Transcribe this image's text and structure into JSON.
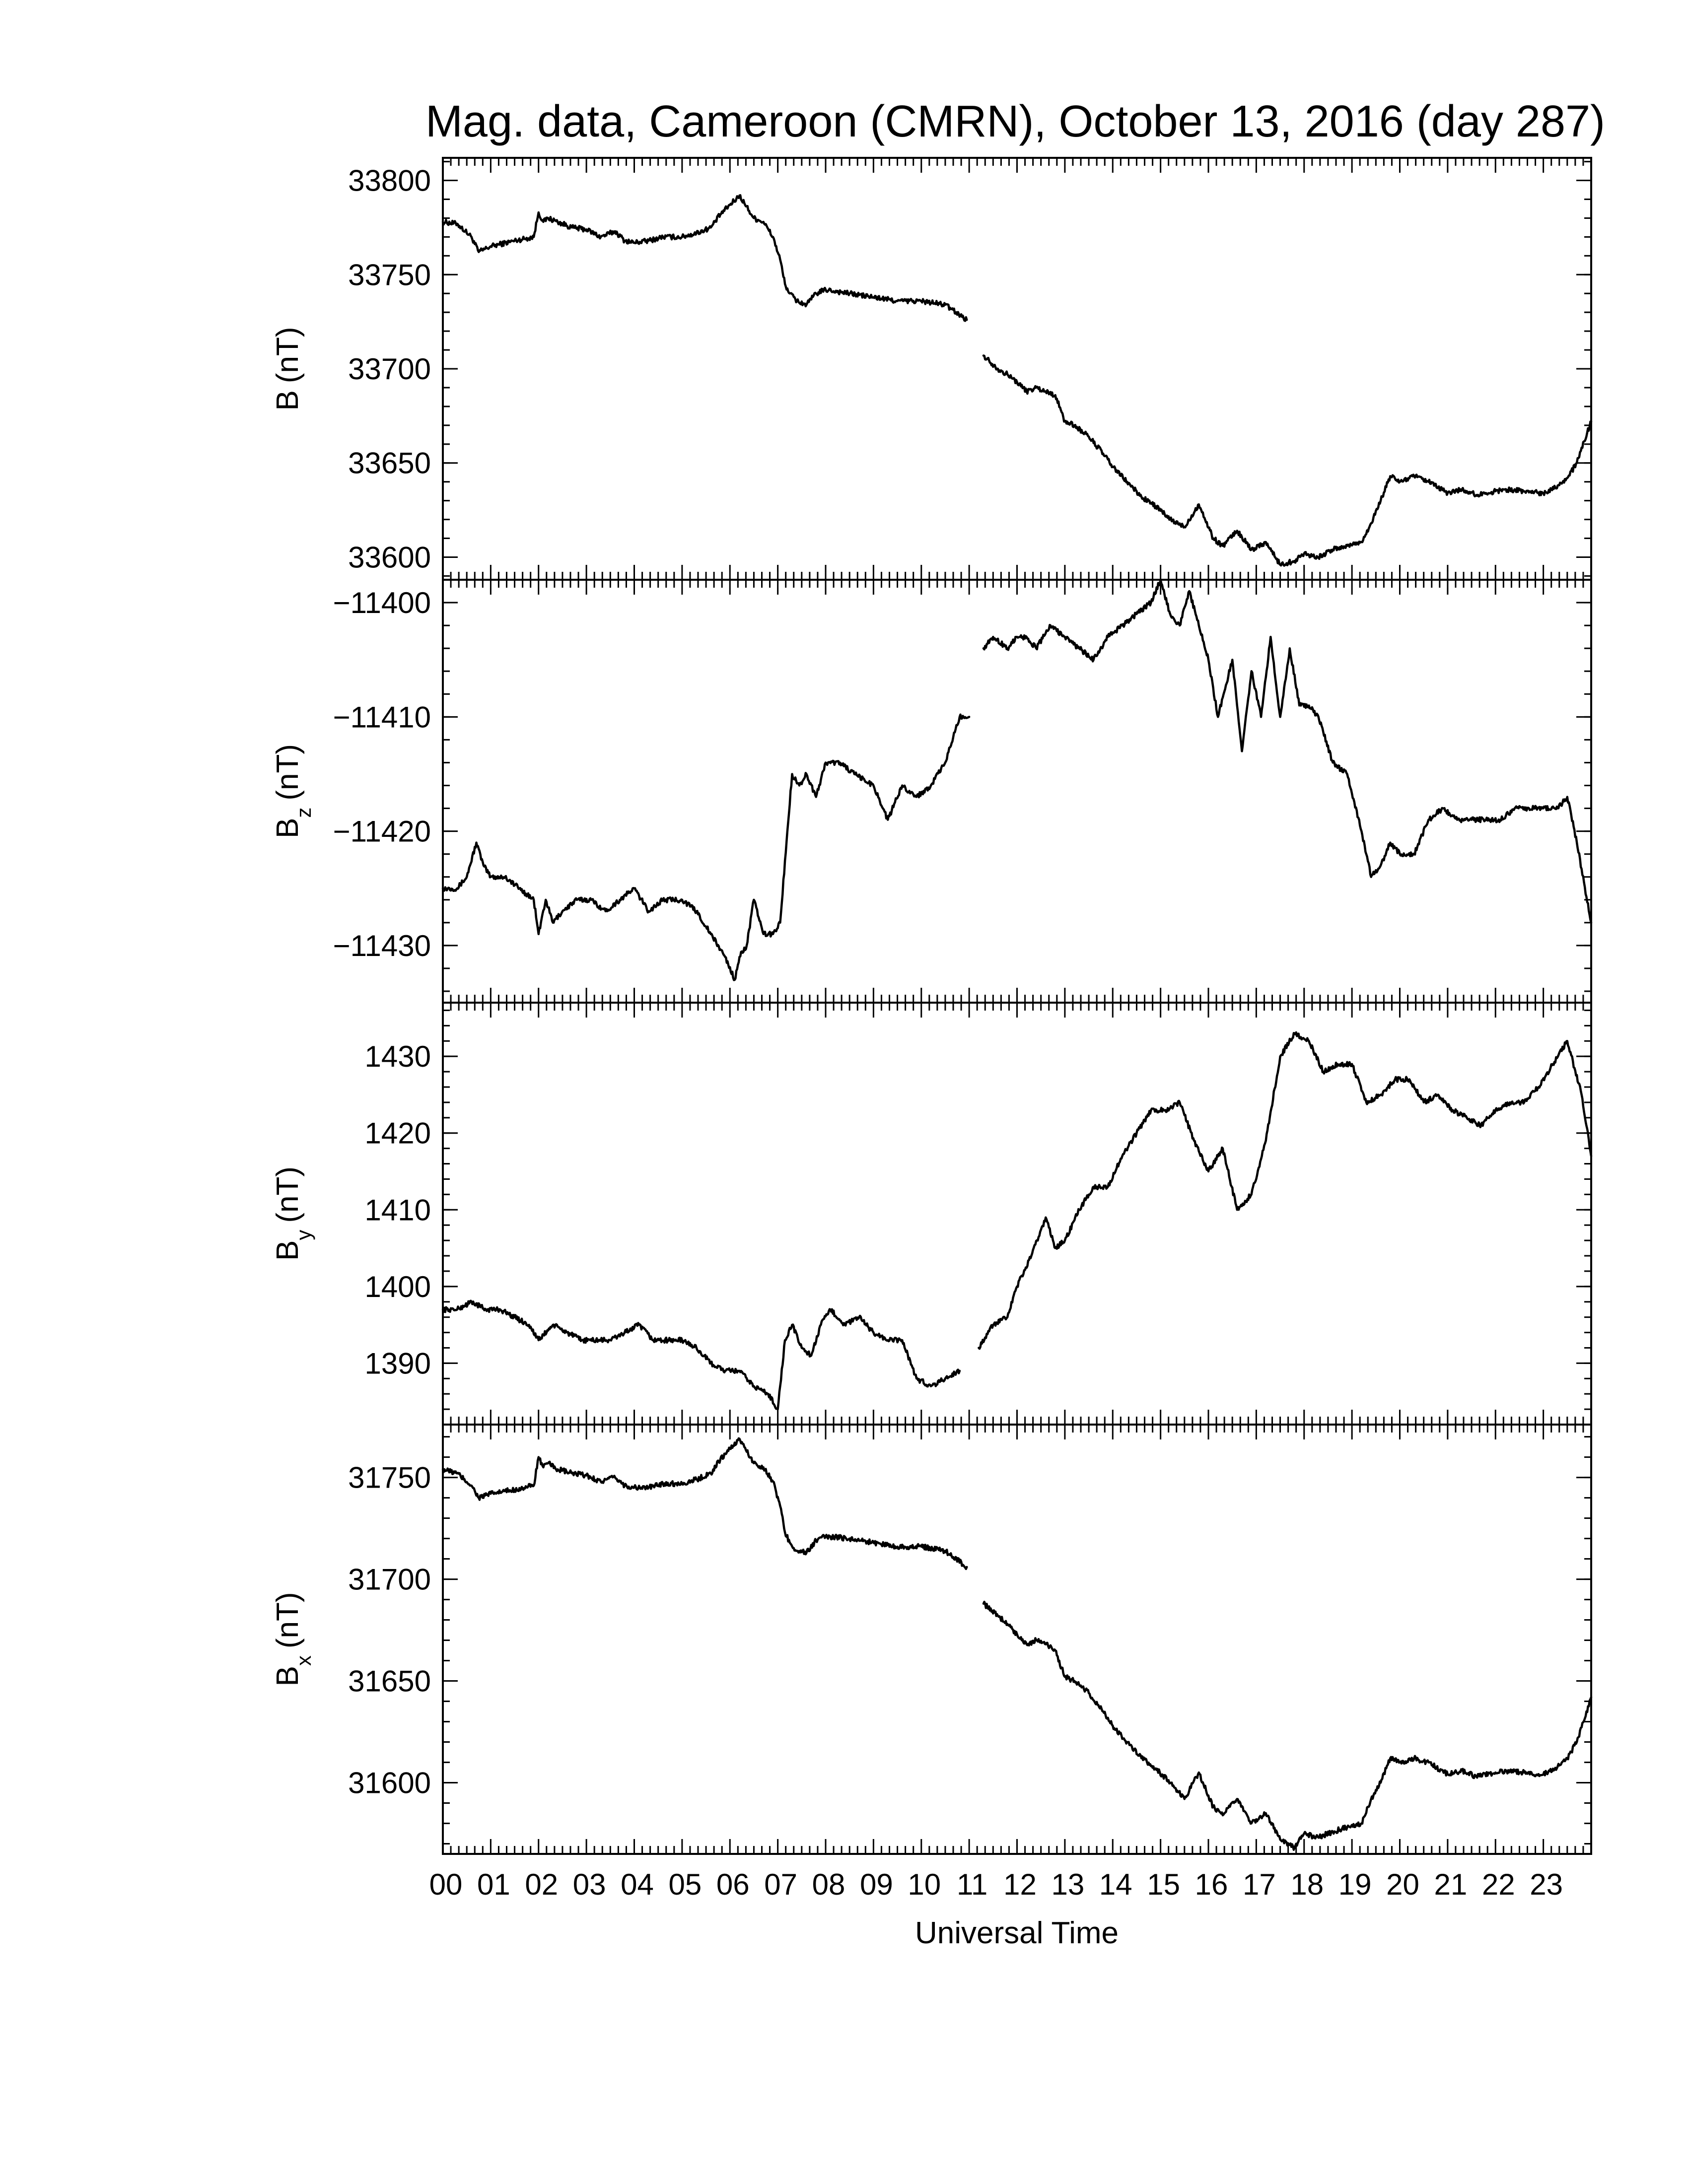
{
  "chart_data": {
    "title": "Mag. data, Cameroon (CMRN), October 13, 2016 (day 287)",
    "type": "line",
    "xlabel": "Universal Time",
    "xlim": [
      0,
      24
    ],
    "x_tick_labels": [
      "00",
      "01",
      "02",
      "03",
      "04",
      "05",
      "06",
      "07",
      "08",
      "09",
      "10",
      "11",
      "12",
      "13",
      "14",
      "15",
      "16",
      "17",
      "18",
      "19",
      "20",
      "21",
      "22",
      "23"
    ],
    "panels": [
      {
        "name": "B",
        "ylabel": "B (nT)",
        "ylabel_main": "B",
        "ylabel_sub": "",
        "ylabel_unit": "(nT)",
        "ylim": [
          33588,
          33812
        ],
        "yticks": [
          33600,
          33650,
          33700,
          33750,
          33800
        ],
        "x": [
          0.0,
          0.3,
          0.6,
          0.75,
          1.0,
          1.5,
          1.9,
          2.0,
          2.1,
          2.2,
          2.4,
          2.7,
          3.0,
          3.3,
          3.6,
          3.8,
          4.0,
          4.3,
          4.6,
          5.0,
          5.3,
          5.6,
          5.8,
          6.0,
          6.2,
          6.3,
          6.5,
          6.7,
          6.9,
          7.05,
          7.15,
          7.25,
          7.4,
          7.6,
          7.8,
          8.0,
          8.5,
          9.0,
          9.5,
          10.0,
          10.5,
          10.95,
          11.1,
          11.3,
          11.6,
          11.8,
          12.0,
          12.2,
          12.4,
          12.6,
          12.8,
          13.0,
          13.2,
          13.5,
          13.8,
          14.0,
          14.3,
          14.6,
          14.9,
          15.2,
          15.5,
          15.8,
          16.1,
          16.3,
          16.6,
          16.9,
          17.2,
          17.5,
          17.8,
          18.0,
          18.3,
          18.6,
          18.9,
          19.2,
          19.4,
          19.6,
          19.8,
          20.0,
          20.3,
          20.6,
          21.0,
          21.3,
          21.6,
          22.0,
          22.3,
          22.6,
          23.0,
          23.3,
          23.5,
          23.7,
          24.0
        ],
        "y": [
          33778,
          33777,
          33770,
          33762,
          33765,
          33768,
          33770,
          33783,
          33778,
          33780,
          33778,
          33775,
          33774,
          33770,
          33773,
          33768,
          33767,
          33768,
          33770,
          33770,
          33772,
          33775,
          33782,
          33787,
          33792,
          33788,
          33780,
          33778,
          33770,
          33758,
          33745,
          33740,
          33736,
          33734,
          33740,
          33742,
          33740,
          33738,
          33736,
          33736,
          33734,
          33726,
          null,
          33707,
          33700,
          33697,
          33693,
          33688,
          33690,
          33688,
          33686,
          33672,
          33670,
          33664,
          33655,
          33648,
          33640,
          33632,
          33627,
          33620,
          33616,
          33628,
          33610,
          33606,
          33614,
          33604,
          33608,
          33596,
          33598,
          33602,
          33600,
          33604,
          33606,
          33608,
          33618,
          33630,
          33643,
          33640,
          33643,
          33640,
          33634,
          33636,
          33633,
          33635,
          33636,
          33635,
          33634,
          33638,
          33642,
          33650,
          33672
        ]
      },
      {
        "name": "Bz",
        "ylabel": "Bz (nT)",
        "ylabel_main": "B",
        "ylabel_sub": "z",
        "ylabel_unit": "(nT)",
        "ylim": [
          -11435,
          -11398
        ],
        "yticks": [
          -11430,
          -11420,
          -11410,
          -11400
        ],
        "x": [
          0.0,
          0.3,
          0.5,
          0.7,
          0.85,
          1.0,
          1.3,
          1.6,
          1.9,
          2.0,
          2.15,
          2.3,
          2.5,
          2.8,
          3.1,
          3.4,
          3.7,
          4.0,
          4.3,
          4.6,
          5.0,
          5.3,
          5.6,
          5.9,
          6.1,
          6.2,
          6.35,
          6.5,
          6.7,
          6.9,
          7.05,
          7.2,
          7.3,
          7.45,
          7.6,
          7.8,
          8.0,
          8.3,
          8.6,
          9.0,
          9.3,
          9.6,
          9.9,
          10.2,
          10.5,
          10.8,
          11.0,
          11.1,
          11.3,
          11.5,
          11.8,
          12.0,
          12.2,
          12.4,
          12.7,
          13.0,
          13.3,
          13.6,
          13.9,
          14.2,
          14.5,
          14.8,
          15.0,
          15.2,
          15.4,
          15.6,
          15.8,
          16.0,
          16.2,
          16.5,
          16.7,
          16.9,
          17.1,
          17.3,
          17.5,
          17.7,
          17.9,
          18.1,
          18.3,
          18.6,
          18.9,
          19.2,
          19.4,
          19.6,
          19.8,
          20.0,
          20.3,
          20.6,
          20.9,
          21.2,
          21.5,
          21.8,
          22.1,
          22.4,
          22.7,
          23.0,
          23.3,
          23.5,
          23.7,
          24.0
        ],
        "y": [
          -11425,
          -11425,
          -11424,
          -11421,
          -11423,
          -11424,
          -11424,
          -11425,
          -11426,
          -11429,
          -11426,
          -11428,
          -11427,
          -11426,
          -11426,
          -11427,
          -11426,
          -11425,
          -11427,
          -11426,
          -11426,
          -11427,
          -11429,
          -11431,
          -11433,
          -11431,
          -11430,
          -11426,
          -11429,
          -11429,
          -11428,
          -11420,
          -11415,
          -11416,
          -11415,
          -11417,
          -11414,
          -11414,
          -11415,
          -11416,
          -11419,
          -11416,
          -11417,
          -11416,
          -11414,
          -11410,
          -11410,
          null,
          -11404,
          -11403,
          -11404,
          -11403,
          -11403,
          -11404,
          -11402,
          -11403,
          -11404,
          -11405,
          -11403,
          -11402,
          -11401,
          -11400,
          -11398,
          -11401,
          -11402,
          -11399,
          -11402,
          -11405,
          -11410,
          -11405,
          -11413,
          -11406,
          -11410,
          -11403,
          -11410,
          -11404,
          -11409,
          -11409,
          -11410,
          -11414,
          -11415,
          -11420,
          -11424,
          -11423,
          -11421,
          -11422,
          -11422,
          -11419,
          -11418,
          -11419,
          -11419,
          -11419,
          -11419,
          -11418,
          -11418,
          -11418,
          -11418,
          -11417,
          -11421,
          -11428
        ]
      },
      {
        "name": "By",
        "ylabel": "By (nT)",
        "ylabel_main": "B",
        "ylabel_sub": "y",
        "ylabel_unit": "(nT)",
        "ylim": [
          1382,
          1437
        ],
        "yticks": [
          1390,
          1400,
          1410,
          1420,
          1430
        ],
        "x": [
          0.0,
          0.3,
          0.6,
          0.9,
          1.2,
          1.5,
          1.8,
          2.0,
          2.3,
          2.6,
          2.9,
          3.2,
          3.5,
          3.8,
          4.1,
          4.4,
          4.7,
          5.0,
          5.3,
          5.6,
          5.9,
          6.2,
          6.5,
          6.8,
          7.0,
          7.15,
          7.3,
          7.5,
          7.7,
          7.9,
          8.1,
          8.4,
          8.7,
          9.0,
          9.3,
          9.6,
          9.9,
          10.2,
          10.5,
          10.8,
          11.0,
          11.2,
          11.5,
          11.8,
          12.0,
          12.3,
          12.6,
          12.8,
          13.0,
          13.3,
          13.6,
          13.9,
          14.2,
          14.5,
          14.8,
          15.1,
          15.4,
          15.7,
          16.0,
          16.3,
          16.6,
          16.9,
          17.2,
          17.5,
          17.8,
          18.1,
          18.4,
          18.7,
          19.0,
          19.3,
          19.6,
          19.9,
          20.2,
          20.5,
          20.8,
          21.1,
          21.4,
          21.7,
          22.0,
          22.3,
          22.6,
          22.9,
          23.2,
          23.5,
          23.8,
          24.0
        ],
        "y": [
          1397,
          1397,
          1398,
          1397,
          1397,
          1396,
          1395,
          1393,
          1395,
          1394,
          1393,
          1393,
          1393,
          1394,
          1395,
          1393,
          1393,
          1393,
          1392,
          1390,
          1389,
          1389,
          1387,
          1386,
          1384,
          1393,
          1395,
          1392,
          1391,
          1395,
          1397,
          1395,
          1396,
          1394,
          1393,
          1393,
          1388,
          1387,
          1388,
          1389,
          null,
          1392,
          1395,
          1396,
          1400,
          1404,
          1409,
          1405,
          1406,
          1410,
          1413,
          1413,
          1417,
          1420,
          1423,
          1423,
          1424,
          1419,
          1415,
          1418,
          1410,
          1412,
          1419,
          1430,
          1433,
          1432,
          1428,
          1429,
          1429,
          1424,
          1425,
          1427,
          1427,
          1424,
          1425,
          1423,
          1422,
          1421,
          1423,
          1424,
          1424,
          1426,
          1429,
          1432,
          1425,
          1417
        ]
      },
      {
        "name": "Bx",
        "ylabel": "Bx (nT)",
        "ylabel_main": "B",
        "ylabel_sub": "x",
        "ylabel_unit": "(nT)",
        "ylim": [
          1565,
          1776
        ],
        "ylim_note": "31565 to 31776",
        "ylim_full": [
          31565,
          31776
        ],
        "yticks": [
          31600,
          31650,
          31700,
          31750
        ],
        "x": [
          0.0,
          0.3,
          0.6,
          0.75,
          1.0,
          1.5,
          1.9,
          2.0,
          2.1,
          2.2,
          2.4,
          2.7,
          3.0,
          3.3,
          3.6,
          3.8,
          4.0,
          4.3,
          4.6,
          5.0,
          5.3,
          5.6,
          5.8,
          6.0,
          6.2,
          6.3,
          6.5,
          6.7,
          6.9,
          7.05,
          7.15,
          7.25,
          7.4,
          7.6,
          7.8,
          8.0,
          8.5,
          9.0,
          9.5,
          10.0,
          10.5,
          10.95,
          11.1,
          11.3,
          11.6,
          11.8,
          12.0,
          12.2,
          12.4,
          12.6,
          12.8,
          13.0,
          13.2,
          13.5,
          13.8,
          14.0,
          14.3,
          14.6,
          14.9,
          15.2,
          15.5,
          15.8,
          16.1,
          16.3,
          16.6,
          16.9,
          17.2,
          17.5,
          17.8,
          18.0,
          18.3,
          18.6,
          18.9,
          19.2,
          19.4,
          19.6,
          19.8,
          20.0,
          20.3,
          20.6,
          21.0,
          21.3,
          21.6,
          22.0,
          22.3,
          22.6,
          23.0,
          23.3,
          23.5,
          23.7,
          24.0
        ],
        "y": [
          31754,
          31752,
          31746,
          31740,
          31742,
          31744,
          31746,
          31760,
          31755,
          31757,
          31754,
          31752,
          31751,
          31748,
          31750,
          31746,
          31745,
          31745,
          31747,
          31747,
          31749,
          31752,
          31759,
          31764,
          31769,
          31765,
          31757,
          31755,
          31748,
          31736,
          31723,
          31718,
          31714,
          31713,
          31719,
          31721,
          31720,
          31718,
          31716,
          31716,
          31714,
          31706,
          null,
          31688,
          31682,
          31678,
          31673,
          31668,
          31670,
          31668,
          31665,
          31652,
          31650,
          31644,
          31635,
          31628,
          31620,
          31612,
          31607,
          31600,
          31592,
          31605,
          31588,
          31584,
          31592,
          31580,
          31585,
          31572,
          31568,
          31575,
          31573,
          31576,
          31578,
          31580,
          31592,
          31600,
          31612,
          31610,
          31612,
          31610,
          31604,
          31606,
          31603,
          31605,
          31606,
          31605,
          31604,
          31608,
          31612,
          31620,
          31642
        ]
      }
    ]
  }
}
